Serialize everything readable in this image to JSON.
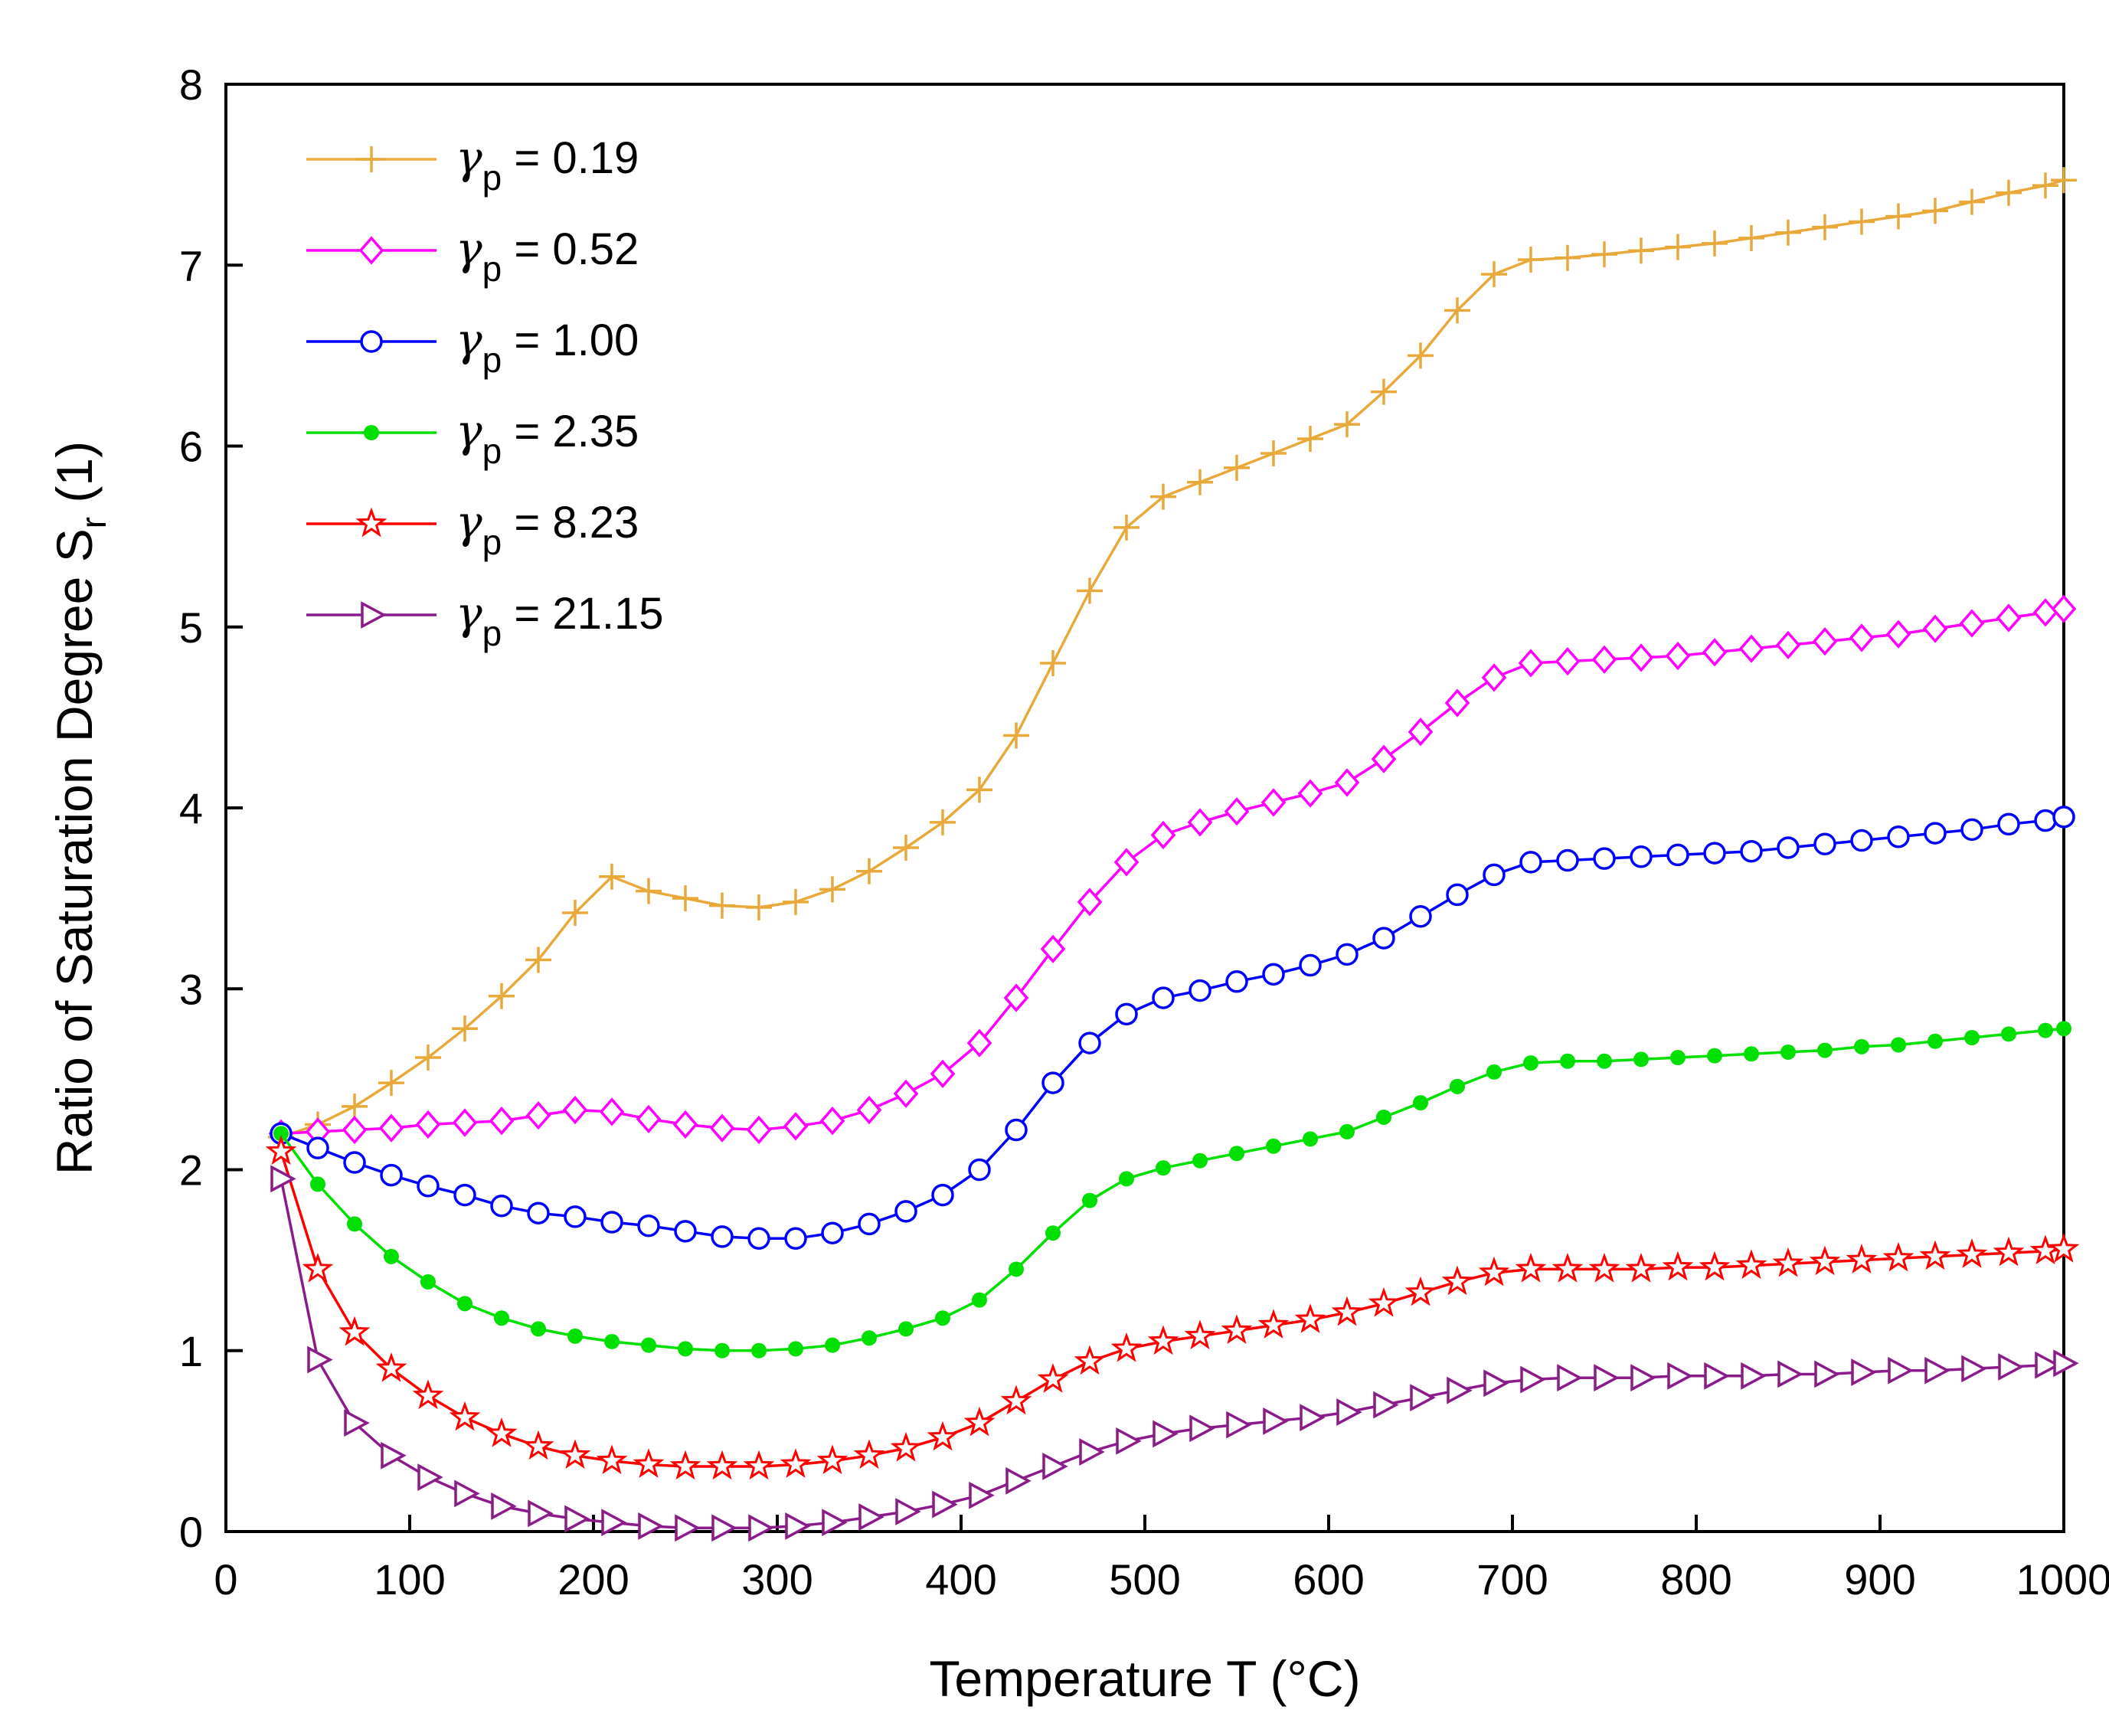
{
  "chart_data": {
    "type": "line",
    "xlabel": "Temperature T (°C)",
    "ylabel": "Ratio of Saturation Degree Sr (1)",
    "ylabel_main": "Ratio of Saturation Degree S",
    "ylabel_sub": "r",
    "ylabel_tail": " (1)",
    "xlim": [
      0,
      1000
    ],
    "ylim": [
      0,
      8
    ],
    "xticks": [
      0,
      100,
      200,
      300,
      400,
      500,
      600,
      700,
      800,
      900,
      1000
    ],
    "yticks": [
      0,
      1,
      2,
      3,
      4,
      5,
      6,
      7,
      8
    ],
    "grid": false,
    "legend_position": "top-left",
    "series": [
      {
        "name": "γp = 0.19",
        "label_symbol": "γ",
        "label_sub": "p",
        "label_value": " = 0.19",
        "color": "#E8A93A",
        "marker": "plus",
        "x": [
          30,
          50,
          70,
          90,
          110,
          130,
          150,
          170,
          190,
          210,
          230,
          250,
          270,
          290,
          310,
          330,
          350,
          370,
          390,
          410,
          430,
          450,
          470,
          490,
          510,
          530,
          550,
          570,
          590,
          610,
          630,
          650,
          670,
          690,
          710,
          730,
          750,
          770,
          790,
          810,
          830,
          850,
          870,
          890,
          910,
          930,
          950,
          970,
          990,
          1000
        ],
        "values": [
          2.18,
          2.25,
          2.35,
          2.48,
          2.62,
          2.78,
          2.96,
          3.16,
          3.42,
          3.62,
          3.54,
          3.5,
          3.46,
          3.45,
          3.48,
          3.55,
          3.65,
          3.78,
          3.92,
          4.1,
          4.4,
          4.8,
          5.2,
          5.55,
          5.72,
          5.8,
          5.88,
          5.96,
          6.04,
          6.12,
          6.3,
          6.5,
          6.75,
          6.95,
          7.03,
          7.04,
          7.06,
          7.08,
          7.1,
          7.12,
          7.15,
          7.18,
          7.21,
          7.24,
          7.27,
          7.3,
          7.35,
          7.4,
          7.44,
          7.47
        ]
      },
      {
        "name": "γp = 0.52",
        "label_symbol": "γ",
        "label_sub": "p",
        "label_value": " = 0.52",
        "color": "#FF00FF",
        "marker": "diamond",
        "x": [
          30,
          50,
          70,
          90,
          110,
          130,
          150,
          170,
          190,
          210,
          230,
          250,
          270,
          290,
          310,
          330,
          350,
          370,
          390,
          410,
          430,
          450,
          470,
          490,
          510,
          530,
          550,
          570,
          590,
          610,
          630,
          650,
          670,
          690,
          710,
          730,
          750,
          770,
          790,
          810,
          830,
          850,
          870,
          890,
          910,
          930,
          950,
          970,
          990,
          1000
        ],
        "values": [
          2.2,
          2.21,
          2.22,
          2.23,
          2.25,
          2.26,
          2.27,
          2.3,
          2.33,
          2.32,
          2.28,
          2.25,
          2.23,
          2.22,
          2.24,
          2.27,
          2.33,
          2.42,
          2.53,
          2.7,
          2.95,
          3.22,
          3.48,
          3.7,
          3.85,
          3.92,
          3.98,
          4.03,
          4.08,
          4.14,
          4.27,
          4.42,
          4.58,
          4.72,
          4.8,
          4.81,
          4.82,
          4.83,
          4.84,
          4.86,
          4.88,
          4.9,
          4.92,
          4.94,
          4.96,
          4.99,
          5.02,
          5.05,
          5.08,
          5.1
        ]
      },
      {
        "name": "γp = 1.00",
        "label_symbol": "γ",
        "label_sub": "p",
        "label_value": " = 1.00",
        "color": "#0000FF",
        "marker": "circle",
        "x": [
          30,
          50,
          70,
          90,
          110,
          130,
          150,
          170,
          190,
          210,
          230,
          250,
          270,
          290,
          310,
          330,
          350,
          370,
          390,
          410,
          430,
          450,
          470,
          490,
          510,
          530,
          550,
          570,
          590,
          610,
          630,
          650,
          670,
          690,
          710,
          730,
          750,
          770,
          790,
          810,
          830,
          850,
          870,
          890,
          910,
          930,
          950,
          970,
          990,
          1000
        ],
        "values": [
          2.2,
          2.12,
          2.04,
          1.97,
          1.91,
          1.86,
          1.8,
          1.76,
          1.74,
          1.71,
          1.69,
          1.66,
          1.63,
          1.62,
          1.62,
          1.65,
          1.7,
          1.77,
          1.86,
          2.0,
          2.22,
          2.48,
          2.7,
          2.86,
          2.95,
          2.99,
          3.04,
          3.08,
          3.13,
          3.19,
          3.28,
          3.4,
          3.52,
          3.63,
          3.7,
          3.71,
          3.72,
          3.73,
          3.74,
          3.75,
          3.76,
          3.78,
          3.8,
          3.82,
          3.84,
          3.86,
          3.88,
          3.91,
          3.93,
          3.95
        ]
      },
      {
        "name": "γp = 2.35",
        "label_symbol": "γ",
        "label_sub": "p",
        "label_value": " = 2.35",
        "color": "#00E000",
        "marker": "dot",
        "x": [
          30,
          50,
          70,
          90,
          110,
          130,
          150,
          170,
          190,
          210,
          230,
          250,
          270,
          290,
          310,
          330,
          350,
          370,
          390,
          410,
          430,
          450,
          470,
          490,
          510,
          530,
          550,
          570,
          590,
          610,
          630,
          650,
          670,
          690,
          710,
          730,
          750,
          770,
          790,
          810,
          830,
          850,
          870,
          890,
          910,
          930,
          950,
          970,
          990,
          1000
        ],
        "values": [
          2.2,
          1.92,
          1.7,
          1.52,
          1.38,
          1.26,
          1.18,
          1.12,
          1.08,
          1.05,
          1.03,
          1.01,
          1.0,
          1.0,
          1.01,
          1.03,
          1.07,
          1.12,
          1.18,
          1.28,
          1.45,
          1.65,
          1.83,
          1.95,
          2.01,
          2.05,
          2.09,
          2.13,
          2.17,
          2.21,
          2.29,
          2.37,
          2.46,
          2.54,
          2.59,
          2.6,
          2.6,
          2.61,
          2.62,
          2.63,
          2.64,
          2.65,
          2.66,
          2.68,
          2.69,
          2.71,
          2.73,
          2.75,
          2.77,
          2.78
        ]
      },
      {
        "name": "γp = 8.23",
        "label_symbol": "γ",
        "label_sub": "p",
        "label_value": " = 8.23",
        "color": "#FF0000",
        "marker": "star",
        "x": [
          30,
          50,
          70,
          90,
          110,
          130,
          150,
          170,
          190,
          210,
          230,
          250,
          270,
          290,
          310,
          330,
          350,
          370,
          390,
          410,
          430,
          450,
          470,
          490,
          510,
          530,
          550,
          570,
          590,
          610,
          630,
          650,
          670,
          690,
          710,
          730,
          750,
          770,
          790,
          810,
          830,
          850,
          870,
          890,
          910,
          930,
          950,
          970,
          990,
          1000
        ],
        "values": [
          2.1,
          1.45,
          1.1,
          0.9,
          0.75,
          0.63,
          0.54,
          0.47,
          0.42,
          0.39,
          0.37,
          0.36,
          0.36,
          0.36,
          0.37,
          0.39,
          0.42,
          0.46,
          0.52,
          0.6,
          0.72,
          0.84,
          0.94,
          1.01,
          1.05,
          1.08,
          1.11,
          1.14,
          1.17,
          1.21,
          1.26,
          1.32,
          1.38,
          1.43,
          1.45,
          1.45,
          1.45,
          1.45,
          1.46,
          1.46,
          1.47,
          1.48,
          1.49,
          1.5,
          1.51,
          1.52,
          1.53,
          1.54,
          1.55,
          1.56
        ]
      },
      {
        "name": "γp = 21.15",
        "label_symbol": "γ",
        "label_sub": "p",
        "label_value": " = 21.15",
        "color": "#8B1A8B",
        "marker": "triangle-right",
        "x": [
          30,
          50,
          70,
          90,
          110,
          130,
          150,
          170,
          190,
          210,
          230,
          250,
          270,
          290,
          310,
          330,
          350,
          370,
          390,
          410,
          430,
          450,
          470,
          490,
          510,
          530,
          550,
          570,
          590,
          610,
          630,
          650,
          670,
          690,
          710,
          730,
          750,
          770,
          790,
          810,
          830,
          850,
          870,
          890,
          910,
          930,
          950,
          970,
          990,
          1000
        ],
        "values": [
          1.95,
          0.95,
          0.6,
          0.42,
          0.3,
          0.21,
          0.14,
          0.1,
          0.07,
          0.05,
          0.03,
          0.02,
          0.02,
          0.02,
          0.03,
          0.05,
          0.08,
          0.11,
          0.15,
          0.2,
          0.28,
          0.36,
          0.44,
          0.5,
          0.54,
          0.57,
          0.59,
          0.61,
          0.63,
          0.66,
          0.7,
          0.74,
          0.78,
          0.82,
          0.84,
          0.85,
          0.85,
          0.85,
          0.86,
          0.86,
          0.86,
          0.87,
          0.87,
          0.88,
          0.89,
          0.89,
          0.9,
          0.91,
          0.92,
          0.93
        ]
      }
    ]
  }
}
